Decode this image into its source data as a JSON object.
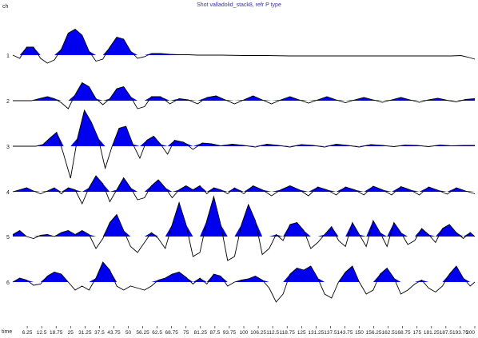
{
  "chart_data": {
    "type": "line",
    "title": "Shot valladolid_stack8, refr P type",
    "y_axis_label": "ch",
    "x_axis_label": "time",
    "xlim": [
      0,
      200
    ],
    "x_ticks": [
      6.25,
      12.5,
      18.75,
      25,
      31.25,
      37.5,
      43.75,
      50,
      56.25,
      62.5,
      68.75,
      75,
      81.25,
      87.5,
      93.75,
      100,
      106.25,
      112.5,
      118.75,
      125,
      131.25,
      137.5,
      143.75,
      150,
      156.25,
      162.5,
      168.75,
      175,
      181.25,
      187.5,
      193.75,
      200
    ],
    "x_tick_labels": [
      "6.25",
      "12.5",
      "18.75",
      "25",
      "31.25",
      "37.5",
      "43.75",
      "50",
      "56.25",
      "62.5",
      "68.75",
      "75",
      "81.25",
      "87.5",
      "93.75",
      "100",
      "106.25",
      "112.5",
      "118.75",
      "125",
      "131.25",
      "137.5",
      "143.75",
      "150",
      "156.25",
      "162.5",
      "168.75",
      "175",
      "181.25",
      "187.5",
      "193.75",
      "200"
    ],
    "fill_color": "#0000ee",
    "line_color": "#000000",
    "positive_fill": true,
    "series": [
      {
        "channel_label": "1",
        "x": [
          0,
          3,
          6,
          9,
          12,
          15,
          18,
          21,
          24,
          27,
          30,
          33,
          36,
          39,
          42,
          45,
          48,
          51,
          54,
          57,
          60,
          64,
          68,
          72,
          76,
          80,
          85,
          90,
          100,
          110,
          120,
          130,
          140,
          150,
          160,
          170,
          180,
          190,
          194,
          197,
          200
        ],
        "y": [
          0,
          -0.08,
          0.2,
          0.2,
          -0.08,
          -0.2,
          -0.12,
          0.15,
          0.55,
          0.65,
          0.5,
          0.1,
          -0.15,
          -0.1,
          0.2,
          0.45,
          0.4,
          0.1,
          -0.08,
          -0.04,
          0.04,
          0.04,
          0.02,
          0.01,
          0.01,
          0,
          0,
          0,
          -0.01,
          -0.01,
          -0.02,
          -0.02,
          -0.02,
          -0.02,
          -0.02,
          -0.02,
          -0.02,
          -0.02,
          -0.01,
          -0.05,
          -0.1
        ]
      },
      {
        "channel_label": "2",
        "x": [
          0,
          4,
          8,
          12,
          15,
          18,
          21,
          24,
          27,
          30,
          33,
          36,
          39,
          42,
          45,
          48,
          51,
          54,
          57,
          60,
          64,
          68,
          72,
          76,
          80,
          84,
          88,
          92,
          96,
          100,
          104,
          108,
          112,
          116,
          120,
          124,
          128,
          132,
          136,
          140,
          144,
          148,
          152,
          156,
          160,
          164,
          168,
          172,
          176,
          180,
          184,
          188,
          192,
          196,
          200
        ],
        "y": [
          0,
          0,
          0,
          0.06,
          0.1,
          0.05,
          -0.05,
          -0.2,
          0.15,
          0.45,
          0.35,
          0.05,
          -0.1,
          0.05,
          0.3,
          0.35,
          0.1,
          -0.2,
          -0.15,
          0.1,
          0.1,
          -0.08,
          0.05,
          0.02,
          -0.08,
          0.08,
          0.12,
          0.02,
          -0.08,
          0.02,
          0.12,
          0.02,
          -0.08,
          0.02,
          0.1,
          0.02,
          -0.06,
          0.02,
          0.1,
          0.02,
          -0.05,
          0.02,
          0.08,
          0.02,
          -0.04,
          0.02,
          0.08,
          0.02,
          -0.04,
          0.02,
          0.06,
          0.01,
          -0.03,
          0.03,
          0.05
        ]
      },
      {
        "channel_label": "3",
        "x": [
          0,
          5,
          10,
          13,
          16,
          19,
          22,
          25,
          28,
          31,
          34,
          37,
          40,
          43,
          46,
          49,
          52,
          55,
          58,
          61,
          64,
          67,
          70,
          74,
          78,
          82,
          86,
          90,
          95,
          100,
          105,
          110,
          115,
          120,
          125,
          130,
          135,
          140,
          145,
          150,
          155,
          160,
          165,
          170,
          175,
          180,
          185,
          190,
          195,
          200
        ],
        "y": [
          0,
          0,
          0,
          0.04,
          0.2,
          0.35,
          -0.2,
          -0.8,
          0.2,
          0.9,
          0.6,
          0.2,
          -0.55,
          0,
          0.45,
          0.5,
          0.05,
          -0.3,
          0.15,
          0.25,
          0.05,
          -0.2,
          0.15,
          0.1,
          -0.08,
          0.08,
          0.06,
          0.01,
          0.05,
          0.02,
          -0.02,
          0.05,
          0.02,
          -0.02,
          0.04,
          0.02,
          -0.02,
          0.05,
          0.02,
          -0.02,
          0.04,
          0.02,
          -0.01,
          0.03,
          0.02,
          -0.01,
          0.03,
          0.01,
          0.02,
          0.02
        ]
      },
      {
        "channel_label": "4",
        "x": [
          0,
          3,
          6,
          9,
          12,
          15,
          18,
          21,
          24,
          27,
          30,
          33,
          36,
          39,
          42,
          45,
          48,
          51,
          54,
          57,
          60,
          63,
          66,
          69,
          72,
          75,
          78,
          81,
          84,
          87,
          90,
          93,
          96,
          100,
          104,
          108,
          112,
          116,
          120,
          124,
          128,
          132,
          136,
          140,
          144,
          148,
          152,
          156,
          160,
          164,
          168,
          172,
          176,
          180,
          184,
          188,
          192,
          196,
          200
        ],
        "y": [
          0,
          0.05,
          0.1,
          0.02,
          -0.05,
          0.02,
          0.1,
          -0.05,
          0.1,
          0.05,
          -0.3,
          0.1,
          0.4,
          0.2,
          -0.25,
          0.05,
          0.35,
          0.1,
          -0.2,
          -0.15,
          0.15,
          0.3,
          0.1,
          -0.15,
          0.05,
          0.15,
          0.05,
          0.15,
          -0.05,
          0.1,
          0.05,
          -0.05,
          0.1,
          -0.05,
          0.15,
          0.05,
          -0.1,
          0.05,
          0.15,
          0.05,
          -0.1,
          0.12,
          0.05,
          -0.08,
          0.12,
          0.05,
          -0.08,
          0.14,
          0.05,
          -0.08,
          0.13,
          0.05,
          -0.08,
          0.12,
          0.04,
          -0.06,
          0.1,
          0.02,
          -0.05
        ]
      },
      {
        "channel_label": "5",
        "x": [
          0,
          3,
          6,
          9,
          12,
          15,
          18,
          21,
          24,
          27,
          30,
          33,
          36,
          39,
          42,
          45,
          48,
          51,
          54,
          57,
          60,
          63,
          66,
          69,
          72,
          75,
          78,
          81,
          84,
          87,
          90,
          93,
          96,
          99,
          102,
          105,
          108,
          111,
          114,
          117,
          120,
          123,
          126,
          129,
          132,
          135,
          138,
          141,
          144,
          147,
          150,
          153,
          156,
          159,
          162,
          165,
          168,
          171,
          174,
          177,
          180,
          183,
          186,
          189,
          192,
          195,
          198,
          200
        ],
        "y": [
          0.05,
          0.15,
          0,
          -0.05,
          0.03,
          0.05,
          0,
          0.1,
          0.15,
          0.05,
          0.15,
          0.05,
          -0.3,
          -0.05,
          0.35,
          0.55,
          0.15,
          -0.25,
          -0.4,
          -0.15,
          0.1,
          -0.05,
          -0.3,
          0.3,
          0.85,
          0.3,
          -0.5,
          -0.4,
          0.4,
          1.0,
          0.3,
          -0.6,
          -0.5,
          0.3,
          0.8,
          0.4,
          -0.45,
          -0.3,
          0.05,
          -0.1,
          0.3,
          0.35,
          0.15,
          -0.3,
          -0.15,
          0.05,
          0.25,
          -0.1,
          -0.25,
          0.35,
          0.05,
          -0.25,
          0.4,
          0.1,
          -0.25,
          0.35,
          0.1,
          -0.2,
          -0.1,
          0.2,
          0.05,
          -0.15,
          0.2,
          0.3,
          0.1,
          -0.05,
          0.1,
          0
        ]
      },
      {
        "channel_label": "6",
        "x": [
          0,
          3,
          6,
          9,
          12,
          15,
          18,
          21,
          24,
          27,
          30,
          33,
          36,
          39,
          42,
          45,
          48,
          51,
          54,
          57,
          60,
          63,
          66,
          69,
          72,
          75,
          78,
          81,
          84,
          87,
          90,
          93,
          96,
          99,
          102,
          105,
          108,
          111,
          114,
          117,
          120,
          123,
          126,
          129,
          132,
          135,
          138,
          141,
          144,
          147,
          150,
          153,
          156,
          159,
          162,
          165,
          168,
          171,
          174,
          177,
          180,
          183,
          186,
          189,
          192,
          195,
          198,
          200
        ],
        "y": [
          0,
          0.1,
          0.05,
          -0.08,
          -0.05,
          0.15,
          0.25,
          0.2,
          0,
          -0.2,
          -0.1,
          -0.2,
          0.1,
          0.5,
          0.3,
          -0.1,
          -0.2,
          -0.1,
          -0.15,
          -0.2,
          -0.1,
          0.05,
          0.1,
          0.2,
          0.25,
          0.12,
          -0.05,
          0.1,
          -0.05,
          0.2,
          0.15,
          -0.1,
          0,
          0.05,
          0.08,
          0.15,
          0.05,
          -0.15,
          -0.5,
          -0.3,
          0.2,
          0.35,
          0.3,
          0.4,
          0.1,
          -0.3,
          -0.4,
          0,
          0.25,
          0.4,
          0,
          -0.3,
          -0.2,
          0.2,
          0.35,
          0.1,
          -0.3,
          -0.2,
          -0.05,
          0.05,
          -0.15,
          -0.25,
          -0.1,
          0.2,
          0.4,
          0.1,
          -0.1,
          0
        ]
      }
    ]
  }
}
